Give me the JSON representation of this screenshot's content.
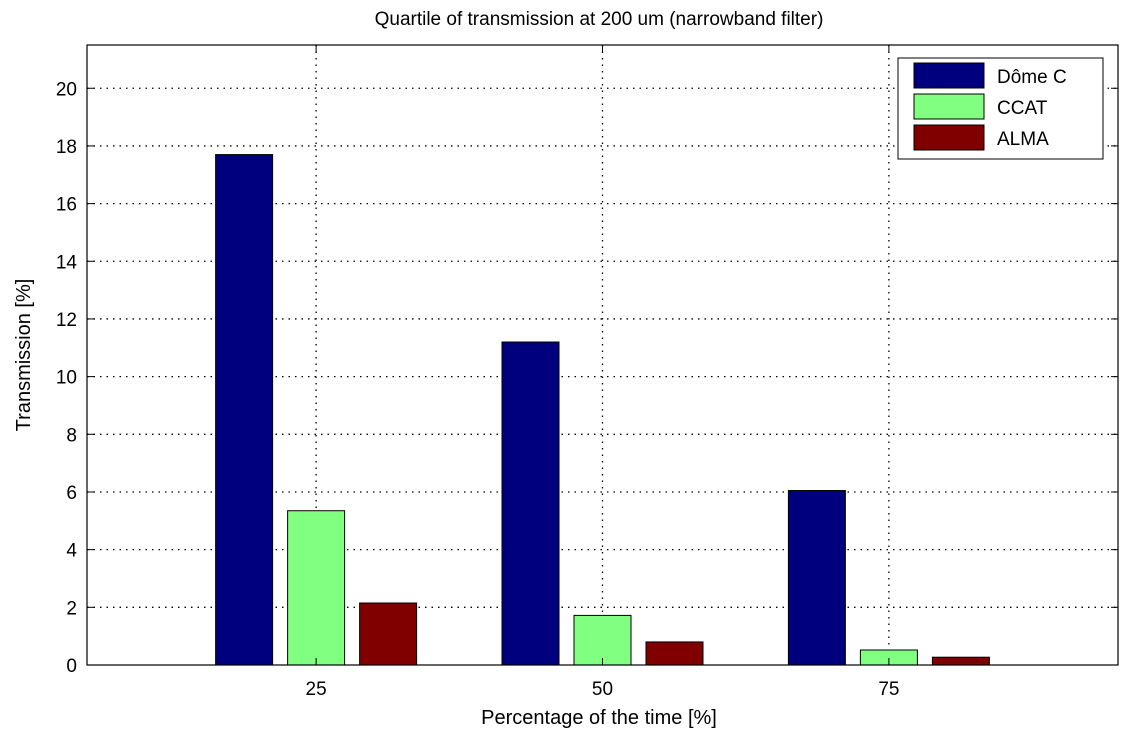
{
  "chart_data": {
    "type": "bar",
    "title": "Quartile of transmission at 200 um (narrowband filter)",
    "xlabel": "Percentage of the time [%]",
    "ylabel": "Transmission [%]",
    "categories": [
      "25",
      "50",
      "75"
    ],
    "ylim": [
      0,
      21.5
    ],
    "yticks": [
      0,
      2,
      4,
      6,
      8,
      10,
      12,
      14,
      16,
      18,
      20
    ],
    "grid": true,
    "legend_position": "top-right",
    "series": [
      {
        "name": "Dôme C",
        "color": "#00007f",
        "values": [
          17.7,
          11.2,
          6.05
        ]
      },
      {
        "name": "CCAT",
        "color": "#80ff80",
        "values": [
          5.35,
          1.72,
          0.52
        ]
      },
      {
        "name": "ALMA",
        "color": "#800000",
        "values": [
          2.15,
          0.8,
          0.27
        ]
      }
    ]
  }
}
